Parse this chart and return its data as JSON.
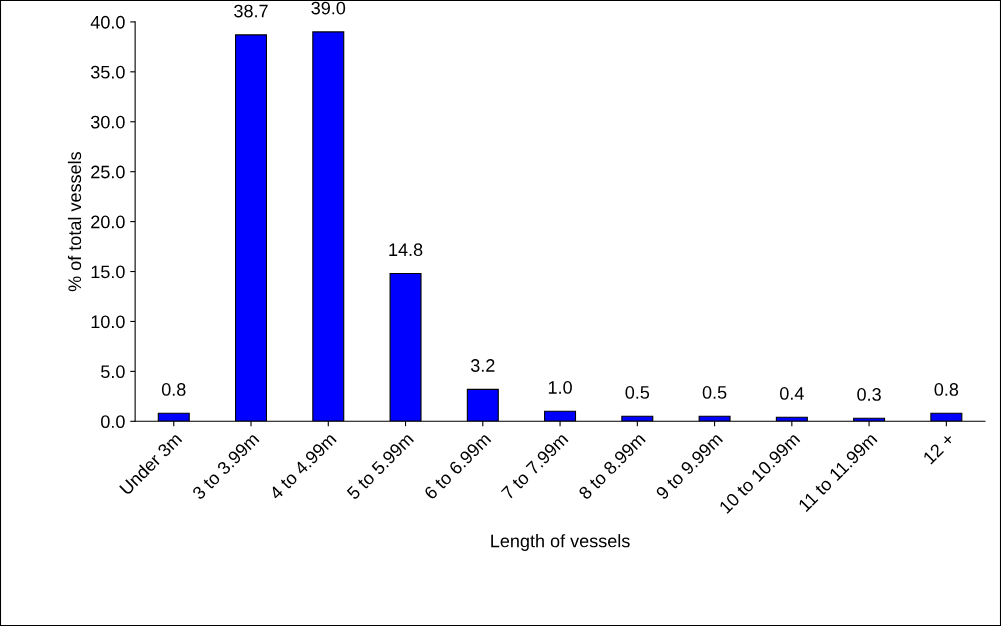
{
  "chart_data": {
    "type": "bar",
    "xlabel": "Length of vessels",
    "ylabel": "% of total vessels",
    "categories": [
      "Under 3m",
      "3 to 3.99m",
      "4 to 4.99m",
      "5 to 5.99m",
      "6 to 6.99m",
      "7 to 7.99m",
      "8 to 8.99m",
      "9 to 9.99m",
      "10 to 10.99m",
      "11 to 11.99m",
      "12 +"
    ],
    "values": [
      0.8,
      38.7,
      39.0,
      14.8,
      3.2,
      1.0,
      0.5,
      0.5,
      0.4,
      0.3,
      0.8
    ],
    "value_labels": [
      "0.8",
      "38.7",
      "39.0",
      "14.8",
      "3.2",
      "1.0",
      "0.5",
      "0.5",
      "0.4",
      "0.3",
      "0.8"
    ],
    "color": "#0000ff",
    "ylim": [
      0,
      40
    ],
    "yticks": [
      {
        "value": 0,
        "label": "0.0"
      },
      {
        "value": 5,
        "label": "5.0"
      },
      {
        "value": 10,
        "label": "10.0"
      },
      {
        "value": 15,
        "label": "15.0"
      },
      {
        "value": 20,
        "label": "20.0"
      },
      {
        "value": 25,
        "label": "25.0"
      },
      {
        "value": 30,
        "label": "30.0"
      },
      {
        "value": 35,
        "label": "35.0"
      },
      {
        "value": 40,
        "label": "40.0"
      }
    ],
    "grid": false,
    "legend": false
  }
}
